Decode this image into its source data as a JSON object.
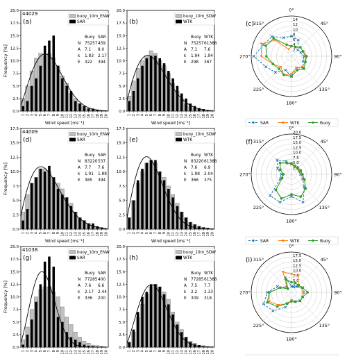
{
  "chart_data": {
    "type": "composite",
    "rows": [
      {
        "buoy_id": "44029",
        "hist_left": {
          "panel": "(a)",
          "legend": [
            "buoy_10m_ENW",
            "SAR"
          ],
          "xlabel": "Wind speed [ms⁻¹]",
          "ylabel": "Frequency [%]",
          "ylim": [
            0,
            20
          ],
          "yticks": [
            "0.0",
            "2.5",
            "5.0",
            "7.5",
            "10.0",
            "12.5",
            "15.0",
            "17.5",
            "20.0"
          ],
          "xticks": [
            "1",
            "2",
            "3",
            "4",
            "5",
            "6",
            "7",
            "8",
            "9",
            "10",
            "11",
            "12",
            "13",
            "14",
            "15",
            "16",
            "17",
            "18",
            "19",
            "20"
          ],
          "table": {
            "headers": [
              "",
              "Buoy",
              "SAR"
            ],
            "rows": [
              [
                "N",
                "75257",
                "459"
              ],
              [
                "A",
                "7.1",
                "8.0"
              ],
              [
                "k",
                "1.83",
                "2.17"
              ],
              [
                "E",
                "322",
                "394"
              ]
            ]
          },
          "buoy": [
            2.5,
            5,
            8,
            10.5,
            11.5,
            11,
            11.5,
            10.5,
            9,
            7,
            5.5,
            3.5,
            2.5,
            1.5,
            1,
            0.5,
            0.3,
            0.2,
            0.1,
            0.1
          ],
          "other": [
            1,
            2,
            5,
            6.5,
            9,
            13,
            14,
            15,
            9,
            6.5,
            5,
            4,
            2,
            1.5,
            1,
            0.5,
            0.5,
            0.3,
            0.1,
            0.1
          ],
          "fit": {
            "k": 2.17,
            "A": 8.0
          }
        },
        "hist_mid": {
          "panel": "(b)",
          "legend": [
            "buoy_10m_SDW",
            "WTK"
          ],
          "xlabel": "Wind speed [ms⁻¹]",
          "ylabel": "",
          "ylim": [
            0,
            20
          ],
          "yticks": [
            "0.0",
            "2.5",
            "5.0",
            "7.5",
            "10.0",
            "12.5",
            "15.0",
            "17.5",
            "20.0"
          ],
          "xticks": [
            "1",
            "2",
            "3",
            "4",
            "5",
            "6",
            "7",
            "8",
            "9",
            "10",
            "11",
            "12",
            "13",
            "14",
            "15",
            "16",
            "17",
            "18",
            "19",
            "20"
          ],
          "table": {
            "headers": [
              "",
              "Buoy",
              "WTK"
            ],
            "rows": [
              [
                "N",
                "75257",
                "61368"
              ],
              [
                "A",
                "7.1",
                "7.6"
              ],
              [
                "k",
                "1.94",
                "1.94"
              ],
              [
                "E",
                "298",
                "367"
              ]
            ]
          },
          "buoy": [
            3,
            6,
            8.5,
            10,
            11,
            12,
            11.5,
            10,
            9,
            7.5,
            5.5,
            4,
            2.5,
            1.5,
            1,
            0.6,
            0.4,
            0.2,
            0.1,
            0.1
          ],
          "other": [
            2,
            4,
            6.5,
            9,
            10.5,
            11,
            11,
            10.5,
            9.5,
            8,
            6.5,
            5,
            3.5,
            2.5,
            1.5,
            1,
            0.6,
            0.4,
            0.2,
            0.1
          ],
          "fit": {
            "k": 1.94,
            "A": 7.6
          }
        },
        "polar": {
          "panel": "(c)",
          "rmax": 16,
          "rticks": [
            "2",
            "4",
            "6",
            "8",
            "10",
            "12",
            "14"
          ],
          "angle_labels": [
            "0°",
            "45°",
            "90°",
            "135°",
            "180°",
            "225°",
            "270°",
            "315°"
          ],
          "legend": [
            "SAR",
            "WTK",
            "Buoy"
          ],
          "series": [
            {
              "name": "SAR",
              "r": [
                8,
                7,
                3.5,
                4,
                5,
                5,
                6.5,
                5,
                8,
                6,
                9,
                11,
                15,
                12,
                11,
                8
              ]
            },
            {
              "name": "WTK",
              "r": [
                4,
                4,
                5,
                5,
                5.5,
                6,
                6,
                5,
                7,
                8,
                6,
                8,
                12,
                13,
                9,
                3
              ]
            },
            {
              "name": "Buoy",
              "r": [
                4,
                4,
                5,
                5,
                6,
                6,
                7,
                6,
                8,
                8,
                7,
                8,
                10,
                11,
                10,
                5
              ]
            }
          ]
        }
      },
      {
        "buoy_id": "44009",
        "hist_left": {
          "panel": "(d)",
          "legend": [
            "buoy_10m_ENW",
            "SAR"
          ],
          "xlabel": "Wind speed [ms⁻¹]",
          "ylabel": "Frequency [%]",
          "ylim": [
            0,
            17.5
          ],
          "yticks": [
            "0.0",
            "2.5",
            "5.0",
            "7.5",
            "10.0",
            "12.5",
            "15.0",
            "17.5"
          ],
          "xticks": [
            "1",
            "2",
            "3",
            "4",
            "5",
            "6",
            "7",
            "8",
            "9",
            "10",
            "11",
            "12",
            "13",
            "14",
            "15",
            "16",
            "17",
            "18",
            "19",
            "20"
          ],
          "table": {
            "headers": [
              "",
              "Buoy",
              "SAR"
            ],
            "rows": [
              [
                "N",
                "83220",
                "537"
              ],
              [
                "A",
                "7.7",
                "7.6"
              ],
              [
                "k",
                "1.91",
                "1.88"
              ],
              [
                "E",
                "385",
                "394"
              ]
            ]
          },
          "buoy": [
            3,
            6,
            8,
            9,
            10.5,
            10.5,
            10,
            9,
            8,
            7,
            5.5,
            4.5,
            3,
            2,
            1.5,
            1,
            0.6,
            0.4,
            0.2,
            0.1
          ],
          "other": [
            1.5,
            3.5,
            8,
            9,
            10.5,
            10,
            11,
            9,
            7,
            6,
            5.5,
            4,
            3,
            2,
            1.5,
            1,
            1,
            0.5,
            0.3,
            0.1
          ],
          "fit": {
            "k": 1.88,
            "A": 7.6
          }
        },
        "hist_mid": {
          "panel": "(e)",
          "legend": [
            "buoy_10m_SDW",
            "WTK"
          ],
          "xlabel": "Wind speed [ms⁻¹]",
          "ylabel": "",
          "ylim": [
            0,
            17.5
          ],
          "yticks": [
            "0.0",
            "2.5",
            "5.0",
            "7.5",
            "10.0",
            "12.5",
            "15.0",
            "17.5"
          ],
          "xticks": [
            "1",
            "2",
            "3",
            "4",
            "5",
            "6",
            "7",
            "8",
            "9",
            "10",
            "11",
            "12",
            "13",
            "14",
            "15",
            "16",
            "17",
            "18",
            "19",
            "20"
          ],
          "table": {
            "headers": [
              "",
              "Buoy",
              "WTK"
            ],
            "rows": [
              [
                "N",
                "83220",
                "61368"
              ],
              [
                "A",
                "7.6",
                "6.9"
              ],
              [
                "k",
                "1.98",
                "2.04"
              ],
              [
                "E",
                "366",
                "375"
              ]
            ]
          },
          "buoy": [
            2,
            5,
            8,
            10,
            11.5,
            12,
            11.5,
            10,
            9,
            7.5,
            6,
            4.5,
            3,
            2,
            1.2,
            0.8,
            0.5,
            0.3,
            0.2,
            0.1
          ],
          "other": [
            2,
            5,
            8.5,
            10.5,
            11.5,
            12,
            12,
            10,
            8.5,
            7,
            5.5,
            4,
            3,
            2,
            1.2,
            0.8,
            0.5,
            0.3,
            0.2,
            0.1
          ],
          "fit": {
            "k": 2.04,
            "A": 6.9
          }
        },
        "polar": {
          "panel": "(f)",
          "rmax": 20,
          "rticks": [
            "2.5",
            "5.0",
            "7.5",
            "10.0",
            "12.5",
            "15.0",
            "17.5",
            "20.0"
          ],
          "angle_labels": [
            "0°",
            "45°",
            "90°",
            "135°",
            "180°",
            "225°",
            "270°",
            "315°"
          ],
          "legend": [
            "SAR",
            "WTK",
            "Buoy"
          ],
          "series": [
            {
              "name": "SAR",
              "r": [
                5,
                4,
                4,
                4,
                4.5,
                6,
                9,
                15,
                11,
                15,
                15,
                6,
                5,
                7.5,
                10,
                7
              ]
            },
            {
              "name": "WTK",
              "r": [
                5,
                4,
                4,
                4.5,
                5,
                7,
                10,
                12,
                10,
                13,
                11,
                5,
                4,
                6,
                8,
                6
              ]
            },
            {
              "name": "Buoy",
              "r": [
                5.5,
                4.5,
                4.5,
                5,
                5.5,
                7,
                10,
                12,
                10,
                13,
                11,
                5,
                4,
                6,
                8,
                6
              ]
            }
          ]
        }
      },
      {
        "buoy_id": "41038",
        "hist_left": {
          "panel": "(g)",
          "legend": [
            "buoy_10m_ENW",
            "SAR"
          ],
          "xlabel": "Wind speed [ms⁻¹]",
          "ylabel": "Frequency [%]",
          "ylim": [
            0,
            20
          ],
          "yticks": [
            "0.0",
            "2.5",
            "5.0",
            "7.5",
            "10.0",
            "12.5",
            "15.0",
            "17.5",
            "20.0"
          ],
          "xticks": [
            "1",
            "2",
            "3",
            "4",
            "5",
            "6",
            "7",
            "8",
            "9",
            "10",
            "11",
            "12",
            "13",
            "14",
            "15",
            "16",
            "17",
            "18",
            "19",
            "20"
          ],
          "table": {
            "headers": [
              "",
              "Buoy",
              "SAR"
            ],
            "rows": [
              [
                "N",
                "77285",
                "400"
              ],
              [
                "A",
                "7.6",
                "6.6"
              ],
              [
                "k",
                "2.17",
                "2.44"
              ],
              [
                "E",
                "336",
                "200"
              ]
            ]
          },
          "buoy": [
            1.5,
            4,
            7.5,
            10,
            11.5,
            12,
            12,
            11,
            10,
            8,
            6,
            4.5,
            3,
            2,
            1.2,
            0.8,
            0.4,
            0.3,
            0.2,
            0.1
          ],
          "other": [
            0.5,
            2.5,
            5.5,
            9,
            12.5,
            17,
            18,
            16,
            6,
            5,
            3,
            2,
            1.5,
            1,
            0.5,
            0.3,
            0.2,
            0.1,
            0.1,
            0
          ],
          "fit": {
            "k": 2.44,
            "A": 6.6
          }
        },
        "hist_mid": {
          "panel": "(h)",
          "legend": [
            "buoy_10m_SDW",
            "WTK"
          ],
          "xlabel": "Wind speed [ms⁻¹]",
          "ylabel": "",
          "ylim": [
            0,
            20
          ],
          "yticks": [
            "0.0",
            "2.5",
            "5.0",
            "7.5",
            "10.0",
            "12.5",
            "15.0",
            "17.5",
            "20.0"
          ],
          "xticks": [
            "1",
            "2",
            "3",
            "4",
            "5",
            "6",
            "7",
            "8",
            "9",
            "10",
            "11",
            "12",
            "13",
            "14",
            "15",
            "16",
            "17",
            "18",
            "19",
            "20"
          ],
          "table": {
            "headers": [
              "",
              "Buoy",
              "WTK"
            ],
            "rows": [
              [
                "N",
                "77285",
                "61368"
              ],
              [
                "A",
                "7.5",
                "7.7"
              ],
              [
                "k",
                "2.2",
                "2.33"
              ],
              [
                "E",
                "309",
                "318"
              ]
            ]
          },
          "buoy": [
            1,
            3,
            6,
            8.5,
            10.5,
            12,
            12.5,
            12,
            11,
            9.5,
            7,
            5,
            3.5,
            2,
            1.2,
            0.8,
            0.4,
            0.3,
            0.2,
            0.1
          ],
          "other": [
            1,
            3.5,
            7,
            10,
            11,
            12.5,
            12.5,
            12,
            10.5,
            8.5,
            6.5,
            4.5,
            3,
            2,
            1,
            0.6,
            0.4,
            0.2,
            0.1,
            0.1
          ],
          "fit": {
            "k": 2.33,
            "A": 7.7
          }
        },
        "polar": {
          "panel": "(i)",
          "rmax": 20,
          "rticks": [
            "2.5",
            "5.0",
            "7.5",
            "10.0",
            "12.5",
            "15.0",
            "17.5"
          ],
          "angle_labels": [
            "0°",
            "45°",
            "90°",
            "135°",
            "180°",
            "225°",
            "270°",
            "315°"
          ],
          "legend": [
            "SAR",
            "WTK",
            "Buoy"
          ],
          "series": [
            {
              "name": "SAR",
              "r": [
                3,
                3,
                4,
                6,
                6,
                6,
                6,
                5,
                4,
                8,
                13,
                15,
                12,
                7.5,
                3.5,
                8
              ]
            },
            {
              "name": "WTK",
              "r": [
                9,
                9,
                5,
                5.5,
                6,
                6,
                6,
                5,
                4,
                6,
                9,
                12,
                11,
                6,
                3,
                11
              ]
            },
            {
              "name": "Buoy",
              "r": [
                5,
                5,
                5,
                6,
                8,
                6,
                6,
                5,
                4.5,
                6,
                10,
                13,
                11,
                6,
                2.5,
                7
              ]
            }
          ]
        }
      }
    ],
    "colors": {
      "buoy": "#c0c0c0",
      "other": "#000000",
      "sar": "#1f77b4",
      "wtk": "#ff7f0e",
      "buoy_line": "#2ca02c"
    }
  }
}
